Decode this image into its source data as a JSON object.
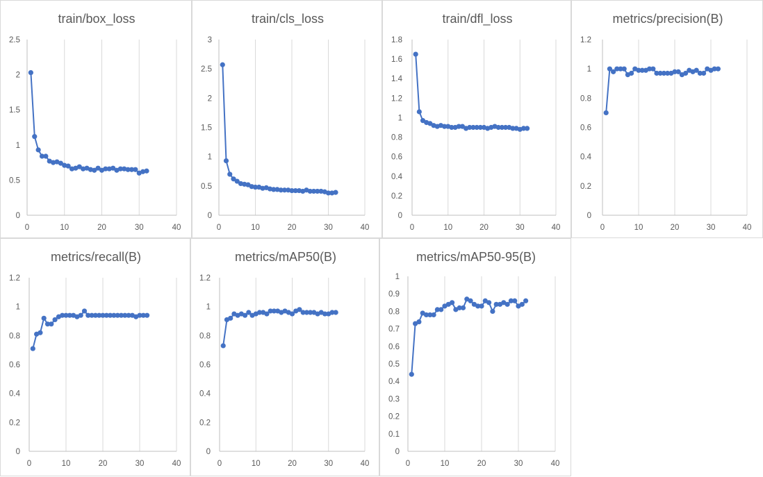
{
  "charts": [
    {
      "title": "train/box_loss",
      "chart_data": {
        "type": "line",
        "title": "train/box_loss",
        "xlabel": "",
        "ylabel": "",
        "xlim": [
          0,
          40
        ],
        "ylim": [
          0,
          2.5
        ],
        "xticks": [
          0,
          10,
          20,
          30,
          40
        ],
        "yticks": [
          0,
          0.5,
          1,
          1.5,
          2,
          2.5
        ],
        "ytick_labels": [
          "0",
          "0.5",
          "1",
          "1.5",
          "2",
          "2.5"
        ],
        "grid": "vertical",
        "line_color": "#4472c4",
        "x": [
          1,
          2,
          3,
          4,
          5,
          6,
          7,
          8,
          9,
          10,
          11,
          12,
          13,
          14,
          15,
          16,
          17,
          18,
          19,
          20,
          21,
          22,
          23,
          24,
          25,
          26,
          27,
          28,
          29,
          30,
          31,
          32
        ],
        "y": [
          2.03,
          1.12,
          0.93,
          0.84,
          0.84,
          0.77,
          0.75,
          0.76,
          0.74,
          0.71,
          0.7,
          0.66,
          0.67,
          0.69,
          0.66,
          0.67,
          0.65,
          0.64,
          0.67,
          0.64,
          0.66,
          0.66,
          0.67,
          0.64,
          0.66,
          0.66,
          0.65,
          0.65,
          0.65,
          0.6,
          0.62,
          0.63
        ]
      }
    },
    {
      "title": "train/cls_loss",
      "chart_data": {
        "type": "line",
        "title": "train/cls_loss",
        "xlabel": "",
        "ylabel": "",
        "xlim": [
          0,
          40
        ],
        "ylim": [
          0,
          3
        ],
        "xticks": [
          0,
          10,
          20,
          30,
          40
        ],
        "yticks": [
          0,
          0.5,
          1,
          1.5,
          2,
          2.5,
          3
        ],
        "ytick_labels": [
          "0",
          "0.5",
          "1",
          "1.5",
          "2",
          "2.5",
          "3"
        ],
        "grid": "vertical",
        "line_color": "#4472c4",
        "x": [
          1,
          2,
          3,
          4,
          5,
          6,
          7,
          8,
          9,
          10,
          11,
          12,
          13,
          14,
          15,
          16,
          17,
          18,
          19,
          20,
          21,
          22,
          23,
          24,
          25,
          26,
          27,
          28,
          29,
          30,
          31,
          32
        ],
        "y": [
          2.57,
          0.93,
          0.7,
          0.62,
          0.58,
          0.54,
          0.53,
          0.52,
          0.49,
          0.48,
          0.48,
          0.46,
          0.47,
          0.45,
          0.44,
          0.44,
          0.43,
          0.43,
          0.43,
          0.42,
          0.42,
          0.42,
          0.41,
          0.43,
          0.41,
          0.41,
          0.41,
          0.41,
          0.4,
          0.38,
          0.38,
          0.39
        ]
      }
    },
    {
      "title": "train/dfl_loss",
      "chart_data": {
        "type": "line",
        "title": "train/dfl_loss",
        "xlabel": "",
        "ylabel": "",
        "xlim": [
          0,
          40
        ],
        "ylim": [
          0,
          1.8
        ],
        "xticks": [
          0,
          10,
          20,
          30,
          40
        ],
        "yticks": [
          0,
          0.2,
          0.4,
          0.6,
          0.8,
          1,
          1.2,
          1.4,
          1.6,
          1.8
        ],
        "ytick_labels": [
          "0",
          "0.2",
          "0.4",
          "0.6",
          "0.8",
          "1",
          "1.2",
          "1.4",
          "1.6",
          "1.8"
        ],
        "grid": "vertical",
        "line_color": "#4472c4",
        "x": [
          1,
          2,
          3,
          4,
          5,
          6,
          7,
          8,
          9,
          10,
          11,
          12,
          13,
          14,
          15,
          16,
          17,
          18,
          19,
          20,
          21,
          22,
          23,
          24,
          25,
          26,
          27,
          28,
          29,
          30,
          31,
          32
        ],
        "y": [
          1.65,
          1.06,
          0.97,
          0.95,
          0.94,
          0.92,
          0.91,
          0.92,
          0.91,
          0.91,
          0.9,
          0.9,
          0.91,
          0.91,
          0.89,
          0.9,
          0.9,
          0.9,
          0.9,
          0.9,
          0.89,
          0.9,
          0.91,
          0.9,
          0.9,
          0.9,
          0.9,
          0.89,
          0.89,
          0.88,
          0.89,
          0.89
        ]
      }
    },
    {
      "title": "metrics/precision(B)",
      "chart_data": {
        "type": "line",
        "title": "metrics/precision(B)",
        "xlabel": "",
        "ylabel": "",
        "xlim": [
          0,
          40
        ],
        "ylim": [
          0,
          1.2
        ],
        "xticks": [
          0,
          10,
          20,
          30,
          40
        ],
        "yticks": [
          0,
          0.2,
          0.4,
          0.6,
          0.8,
          1,
          1.2
        ],
        "ytick_labels": [
          "0",
          "0.2",
          "0.4",
          "0.6",
          "0.8",
          "1",
          "1.2"
        ],
        "grid": "vertical",
        "line_color": "#4472c4",
        "x": [
          1,
          2,
          3,
          4,
          5,
          6,
          7,
          8,
          9,
          10,
          11,
          12,
          13,
          14,
          15,
          16,
          17,
          18,
          19,
          20,
          21,
          22,
          23,
          24,
          25,
          26,
          27,
          28,
          29,
          30,
          31,
          32
        ],
        "y": [
          0.7,
          1.0,
          0.98,
          1.0,
          1.0,
          1.0,
          0.96,
          0.97,
          1.0,
          0.99,
          0.99,
          0.99,
          1.0,
          1.0,
          0.97,
          0.97,
          0.97,
          0.97,
          0.97,
          0.98,
          0.98,
          0.96,
          0.97,
          0.99,
          0.98,
          0.99,
          0.97,
          0.97,
          1.0,
          0.99,
          1.0,
          1.0
        ]
      }
    },
    {
      "title": "metrics/recall(B)",
      "chart_data": {
        "type": "line",
        "title": "metrics/recall(B)",
        "xlabel": "",
        "ylabel": "",
        "xlim": [
          0,
          40
        ],
        "ylim": [
          0,
          1.2
        ],
        "xticks": [
          0,
          10,
          20,
          30,
          40
        ],
        "yticks": [
          0,
          0.2,
          0.4,
          0.6,
          0.8,
          1,
          1.2
        ],
        "ytick_labels": [
          "0",
          "0.2",
          "0.4",
          "0.6",
          "0.8",
          "1",
          "1.2"
        ],
        "grid": "vertical",
        "line_color": "#4472c4",
        "x": [
          1,
          2,
          3,
          4,
          5,
          6,
          7,
          8,
          9,
          10,
          11,
          12,
          13,
          14,
          15,
          16,
          17,
          18,
          19,
          20,
          21,
          22,
          23,
          24,
          25,
          26,
          27,
          28,
          29,
          30,
          31,
          32
        ],
        "y": [
          0.71,
          0.81,
          0.82,
          0.92,
          0.88,
          0.88,
          0.91,
          0.93,
          0.94,
          0.94,
          0.94,
          0.94,
          0.93,
          0.94,
          0.97,
          0.94,
          0.94,
          0.94,
          0.94,
          0.94,
          0.94,
          0.94,
          0.94,
          0.94,
          0.94,
          0.94,
          0.94,
          0.94,
          0.93,
          0.94,
          0.94,
          0.94
        ]
      }
    },
    {
      "title": "metrics/mAP50(B)",
      "chart_data": {
        "type": "line",
        "title": "metrics/mAP50(B)",
        "xlabel": "",
        "ylabel": "",
        "xlim": [
          0,
          40
        ],
        "ylim": [
          0,
          1.2
        ],
        "xticks": [
          0,
          10,
          20,
          30,
          40
        ],
        "yticks": [
          0,
          0.2,
          0.4,
          0.6,
          0.8,
          1,
          1.2
        ],
        "ytick_labels": [
          "0",
          "0.2",
          "0.4",
          "0.6",
          "0.8",
          "1",
          "1.2"
        ],
        "grid": "vertical",
        "line_color": "#4472c4",
        "x": [
          1,
          2,
          3,
          4,
          5,
          6,
          7,
          8,
          9,
          10,
          11,
          12,
          13,
          14,
          15,
          16,
          17,
          18,
          19,
          20,
          21,
          22,
          23,
          24,
          25,
          26,
          27,
          28,
          29,
          30,
          31,
          32
        ],
        "y": [
          0.73,
          0.91,
          0.92,
          0.95,
          0.94,
          0.95,
          0.94,
          0.96,
          0.94,
          0.95,
          0.96,
          0.96,
          0.95,
          0.97,
          0.97,
          0.97,
          0.96,
          0.97,
          0.96,
          0.95,
          0.97,
          0.98,
          0.96,
          0.96,
          0.96,
          0.96,
          0.95,
          0.96,
          0.95,
          0.95,
          0.96,
          0.96
        ]
      }
    },
    {
      "title": "metrics/mAP50-95(B)",
      "chart_data": {
        "type": "line",
        "title": "metrics/mAP50-95(B)",
        "xlabel": "",
        "ylabel": "",
        "xlim": [
          0,
          40
        ],
        "ylim": [
          0,
          1
        ],
        "xticks": [
          0,
          10,
          20,
          30,
          40
        ],
        "yticks": [
          0,
          0.1,
          0.2,
          0.3,
          0.4,
          0.5,
          0.6,
          0.7,
          0.8,
          0.9,
          1
        ],
        "ytick_labels": [
          "0",
          "0.1",
          "0.2",
          "0.3",
          "0.4",
          "0.5",
          "0.6",
          "0.7",
          "0.8",
          "0.9",
          "1"
        ],
        "grid": "vertical",
        "line_color": "#4472c4",
        "x": [
          1,
          2,
          3,
          4,
          5,
          6,
          7,
          8,
          9,
          10,
          11,
          12,
          13,
          14,
          15,
          16,
          17,
          18,
          19,
          20,
          21,
          22,
          23,
          24,
          25,
          26,
          27,
          28,
          29,
          30,
          31,
          32
        ],
        "y": [
          0.44,
          0.73,
          0.74,
          0.79,
          0.78,
          0.78,
          0.78,
          0.81,
          0.81,
          0.83,
          0.84,
          0.85,
          0.81,
          0.82,
          0.82,
          0.87,
          0.86,
          0.84,
          0.83,
          0.83,
          0.86,
          0.85,
          0.8,
          0.84,
          0.84,
          0.85,
          0.84,
          0.86,
          0.86,
          0.83,
          0.84,
          0.86
        ]
      }
    }
  ]
}
